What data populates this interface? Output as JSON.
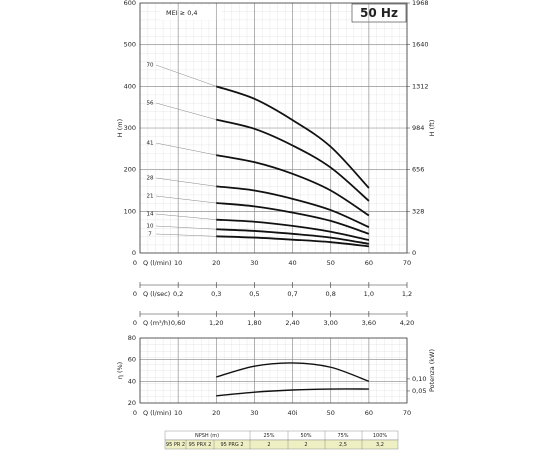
{
  "chart_data": [
    {
      "type": "line",
      "x_label": "Q (l/min)",
      "y_label": "H (m)",
      "y2_label": "H (ft)",
      "annotation": "MEI ≥ 0,4",
      "badge": "50 Hz",
      "x": [
        20,
        30,
        40,
        50,
        60
      ],
      "xlim": [
        0,
        70
      ],
      "xticks": [
        0,
        10,
        20,
        30,
        40,
        50,
        60,
        70
      ],
      "ylim": [
        0,
        600
      ],
      "yticks": [
        0,
        100,
        200,
        300,
        400,
        500,
        600
      ],
      "y2lim": [
        0,
        1968
      ],
      "y2ticks": [
        0,
        328,
        656,
        984,
        1312,
        1640,
        1968
      ],
      "grid": true,
      "series": [
        {
          "name": "70",
          "color": "#111111",
          "values": [
            400,
            370,
            319,
            255,
            156
          ]
        },
        {
          "name": "56",
          "color": "#111111",
          "values": [
            320,
            298,
            258,
            205,
            125
          ]
        },
        {
          "name": "41",
          "color": "#111111",
          "values": [
            235,
            218,
            190,
            150,
            90
          ]
        },
        {
          "name": "28",
          "color": "#111111",
          "values": [
            160,
            150,
            130,
            103,
            62
          ]
        },
        {
          "name": "21",
          "color": "#111111",
          "values": [
            120,
            112,
            97,
            77,
            46
          ]
        },
        {
          "name": "14",
          "color": "#111111",
          "values": [
            80,
            75,
            65,
            51,
            31
          ]
        },
        {
          "name": "10",
          "color": "#111111",
          "values": [
            57,
            53,
            46,
            37,
            22
          ]
        },
        {
          "name": "7",
          "color": "#111111",
          "values": [
            40,
            37,
            32,
            26,
            16
          ]
        }
      ],
      "secondary_x_axes": [
        {
          "label": "Q (l/sec)",
          "xlim": [
            0,
            1.1667
          ],
          "xticks": [
            0,
            {
              "value": 0.1667,
              "label": "0,2"
            },
            {
              "value": 0.3333,
              "label": "0,3"
            },
            {
              "value": 0.5,
              "label": "0,5"
            },
            {
              "value": 0.6667,
              "label": "0,7"
            },
            {
              "value": 0.8333,
              "label": "0,8"
            },
            {
              "value": 1.0,
              "label": "1,0"
            },
            {
              "value": 1.1667,
              "label": "1,2"
            }
          ]
        },
        {
          "label": "Q (m³/h)",
          "xlim": [
            0,
            4.2
          ],
          "xticks": [
            0,
            {
              "value": 0.6,
              "label": "0,60"
            },
            {
              "value": 1.2,
              "label": "1,20"
            },
            {
              "value": 1.8,
              "label": "1,80"
            },
            {
              "value": 2.4,
              "label": "2,40"
            },
            {
              "value": 3.0,
              "label": "3,00"
            },
            {
              "value": 3.6,
              "label": "3,60"
            },
            {
              "value": 4.2,
              "label": "4,20"
            }
          ]
        }
      ]
    },
    {
      "type": "line",
      "x_label": "Q (l/min)",
      "y_label": "η (%)",
      "y2_label": "Potenza (kW)",
      "x": [
        20,
        30,
        40,
        50,
        60
      ],
      "xlim": [
        0,
        70
      ],
      "xticks": [
        0,
        10,
        20,
        30,
        {
          "value": 40,
          "label": "40i"
        },
        50,
        60,
        70
      ],
      "ylim": [
        20,
        80
      ],
      "yticks": [
        20,
        40,
        60,
        80
      ],
      "y2lim": [
        0,
        0.27
      ],
      "y2ticks": [
        {
          "value": 0.05,
          "label": "0,05"
        },
        {
          "value": 0.1,
          "label": "0,10"
        }
      ],
      "grid": true,
      "series": [
        {
          "name": "η",
          "color": "#111111",
          "values": [
            44,
            54,
            57,
            53,
            40
          ]
        },
        {
          "name": "P",
          "color": "#111111",
          "axis": "y2",
          "values": [
            0.03,
            0.045,
            0.054,
            0.058,
            0.058
          ]
        }
      ]
    }
  ],
  "npsh_table": {
    "header": [
      "NPSH (m)",
      "25%",
      "50%",
      "75%",
      "100%"
    ],
    "models": [
      "95 PR 2",
      "95 PRX 2",
      "95 PRG 2"
    ],
    "values": [
      "2",
      "2",
      "2,5",
      "3,2"
    ]
  }
}
